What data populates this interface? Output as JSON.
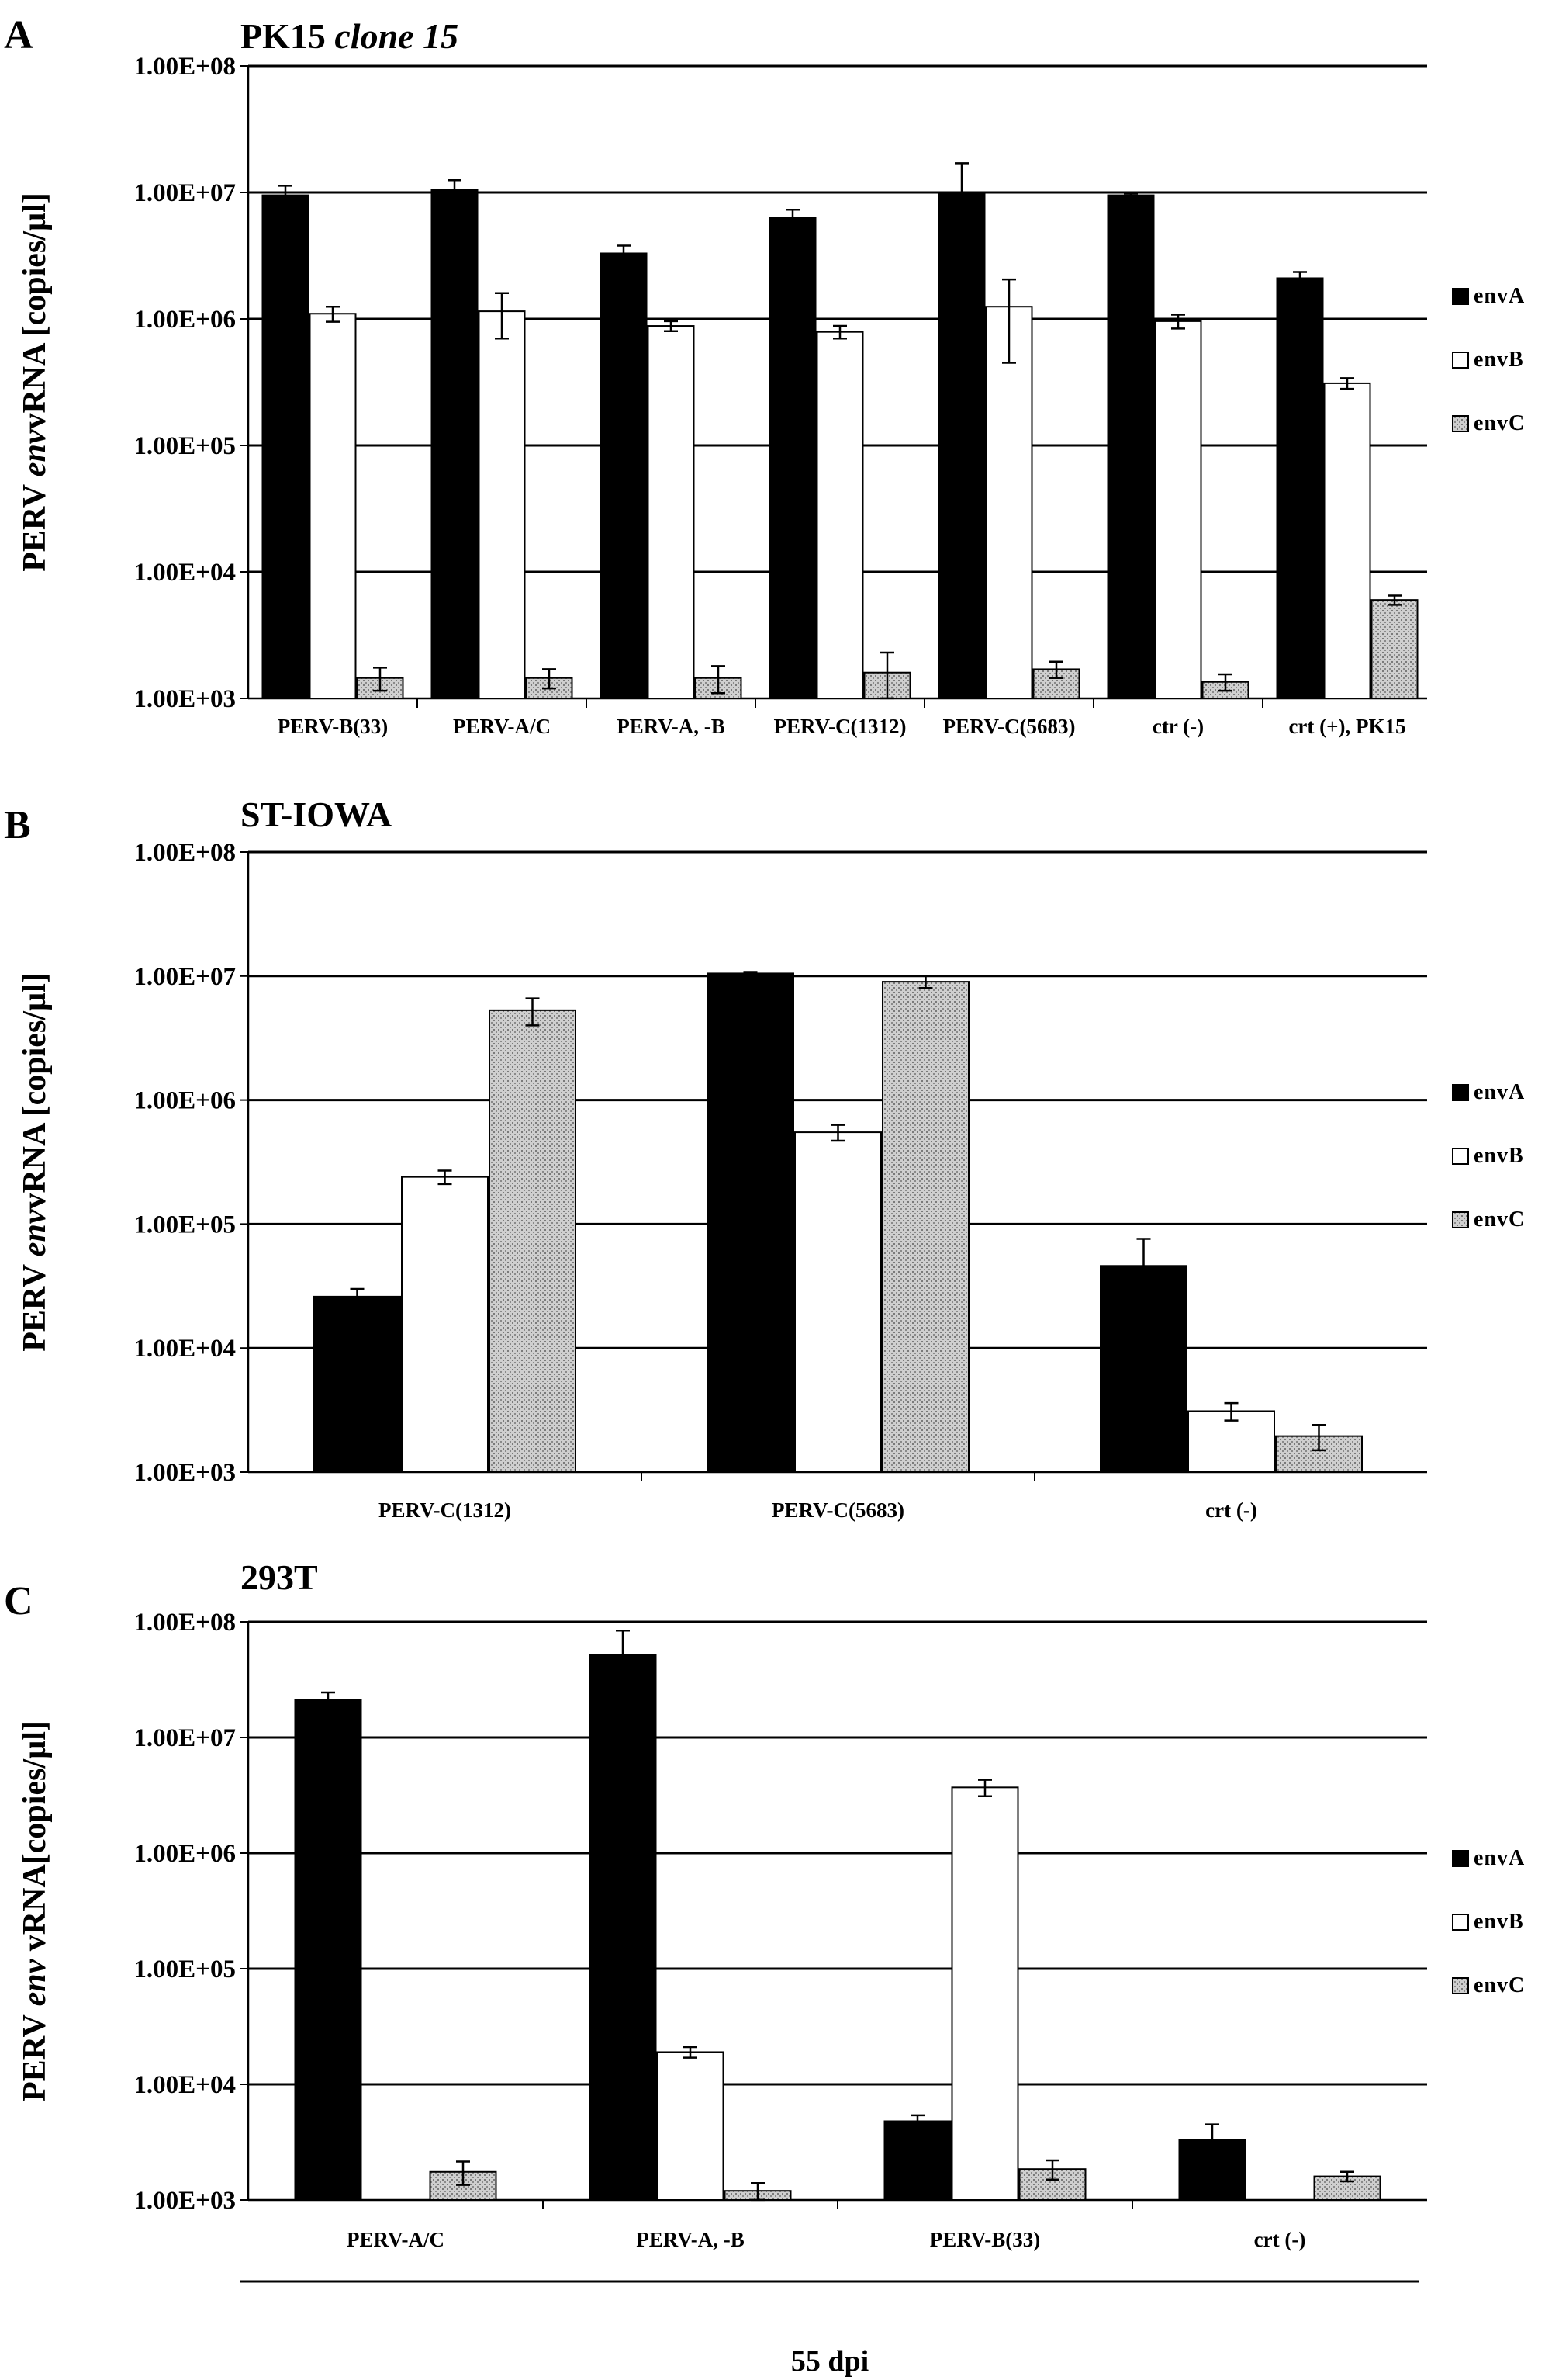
{
  "chart_data": [
    {
      "panel": "A",
      "type": "bar",
      "title": "PK15",
      "title_italic": "clone 15",
      "ylabel_parts": [
        "PERV ",
        "env",
        "vRNA [copies/µl]"
      ],
      "ylabel_italic": [
        false,
        true,
        false
      ],
      "scale": "log",
      "ylim": [
        1000,
        100000000
      ],
      "yticks": [
        "1.00E+03",
        "1.00E+04",
        "1.00E+05",
        "1.00E+06",
        "1.00E+07",
        "1.00E+08"
      ],
      "grid": true,
      "legend_position": "right",
      "categories": [
        "PERV-B(33)",
        "PERV-A/C",
        "PERV-A, -B",
        "PERV-C(1312)",
        "PERV-C(5683)",
        "ctr (-)",
        "crt (+), PK15"
      ],
      "series": [
        {
          "name": "envA",
          "values": [
            9500000,
            10500000,
            3300000,
            6300000,
            10000000,
            9500000,
            2100000
          ],
          "err": [
            1800000,
            2000000,
            500000,
            1000000,
            7000000,
            300000,
            250000
          ]
        },
        {
          "name": "envB",
          "values": [
            1100000,
            1150000,
            880000,
            790000,
            1250000,
            960000,
            310000
          ],
          "err": [
            150000,
            450000,
            80000,
            90000,
            800000,
            120000,
            30000
          ]
        },
        {
          "name": "envC",
          "values": [
            1450,
            1450,
            1450,
            1600,
            1700,
            1350,
            6000
          ],
          "err": [
            300,
            250,
            350,
            700,
            250,
            200,
            500
          ]
        }
      ]
    },
    {
      "panel": "B",
      "type": "bar",
      "title": "ST-IOWA",
      "title_italic": "",
      "ylabel_parts": [
        "PERV ",
        "env",
        "vRNA [copies/µl]"
      ],
      "ylabel_italic": [
        false,
        true,
        false
      ],
      "scale": "log",
      "ylim": [
        1000,
        100000000
      ],
      "yticks": [
        "1.00E+03",
        "1.00E+04",
        "1.00E+05",
        "1.00E+06",
        "1.00E+07",
        "1.00E+08"
      ],
      "grid": true,
      "legend_position": "right",
      "categories": [
        "PERV-C(1312)",
        "PERV-C(5683)",
        "crt (-)"
      ],
      "series": [
        {
          "name": "envA",
          "values": [
            26000,
            10500000,
            46000
          ],
          "err": [
            4000,
            300000,
            30000
          ]
        },
        {
          "name": "envB",
          "values": [
            240000,
            550000,
            3100
          ],
          "err": [
            30000,
            80000,
            500
          ]
        },
        {
          "name": "envC",
          "values": [
            5300000,
            9000000,
            1950
          ],
          "err": [
            1300000,
            1000000,
            450
          ]
        }
      ]
    },
    {
      "panel": "C",
      "type": "bar",
      "title": "293T",
      "title_italic": "",
      "ylabel_parts": [
        "PERV ",
        "env",
        " vRNA[copies/µl]"
      ],
      "ylabel_italic": [
        false,
        true,
        false
      ],
      "scale": "log",
      "ylim": [
        1000,
        100000000
      ],
      "yticks": [
        "1.00E+03",
        "1.00E+04",
        "1.00E+05",
        "1.00E+06",
        "1.00E+07",
        "1.00E+08"
      ],
      "grid": true,
      "legend_position": "right",
      "categories": [
        "PERV-A/C",
        "PERV-A, -B",
        "PERV-B(33)",
        "crt (-)"
      ],
      "series": [
        {
          "name": "envA",
          "values": [
            21000000,
            52000000,
            4800,
            3300
          ],
          "err": [
            3500000,
            32000000,
            600,
            1200
          ]
        },
        {
          "name": "envB",
          "values": [
            null,
            19000,
            3700000,
            null
          ],
          "err": [
            null,
            2000,
            600000,
            null
          ]
        },
        {
          "name": "envC",
          "values": [
            1750,
            1200,
            1850,
            1600
          ],
          "err": [
            400,
            200,
            350,
            150
          ]
        }
      ]
    }
  ],
  "footer": {
    "xlabel": "55 dpi"
  },
  "colors": {
    "envA": "#000000",
    "envB": "#ffffff",
    "envC": "#c4c4c4",
    "grid": "#000000"
  }
}
